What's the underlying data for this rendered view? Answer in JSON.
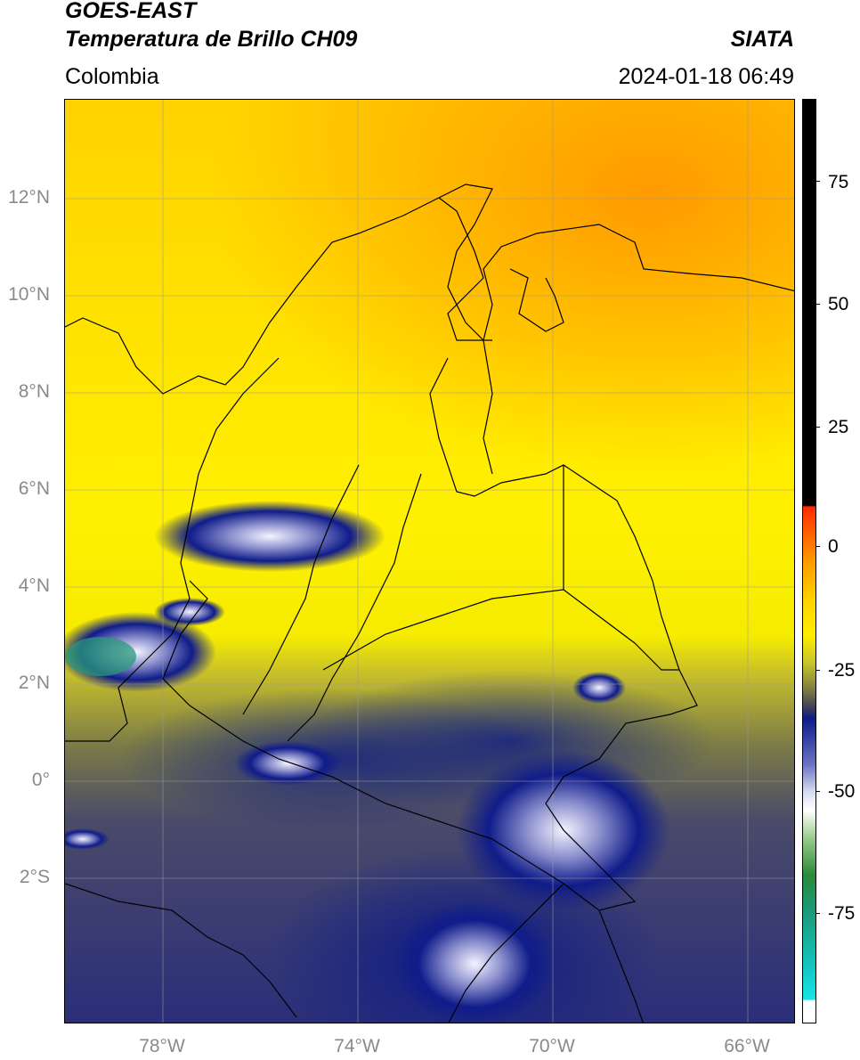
{
  "header": {
    "satellite": "GOES-EAST",
    "product": "Temperatura de Brillo CH09",
    "organization": "SIATA",
    "region": "Colombia",
    "datetime": "2024-01-18 06:49"
  },
  "map": {
    "lat_labels": [
      "12°N",
      "10°N",
      "8°N",
      "6°N",
      "4°N",
      "2°N",
      "0°",
      "2°S"
    ],
    "lon_labels": [
      "78°W",
      "74°W",
      "70°W",
      "66°W"
    ],
    "extent": {
      "lon_min": -80,
      "lon_max": -65,
      "lat_min": -5,
      "lat_max": 14
    }
  },
  "colorbar": {
    "ticks": [
      "75",
      "50",
      "25",
      "0",
      "-25",
      "-50",
      "-75"
    ],
    "colors": {
      "black": "#000000",
      "red": "#ff2a00",
      "orange": "#ff9a00",
      "yellow": "#ffee00",
      "olive": "#a6a33a",
      "navy": "#0c1c8a",
      "white": "#ffffff",
      "green": "#2a8a3a",
      "cyan": "#14d6d6"
    }
  }
}
